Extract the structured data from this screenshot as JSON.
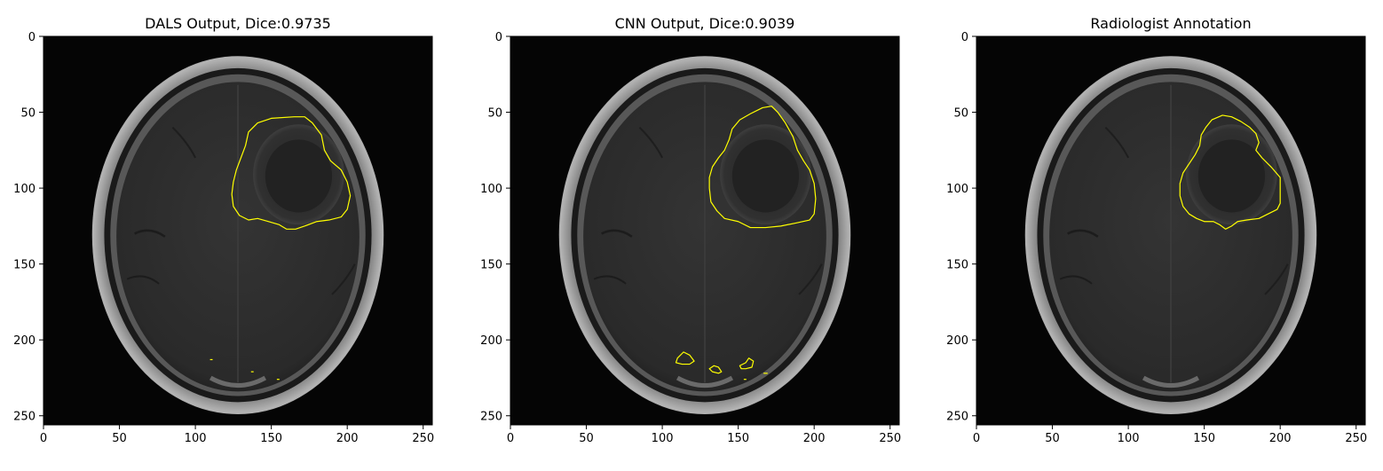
{
  "panels": [
    {
      "title": "DALS Output, Dice:0.9735",
      "contour": "dals"
    },
    {
      "title": "CNN Output, Dice:0.9039",
      "contour": "cnn"
    },
    {
      "title": "Radiologist Annotation",
      "contour": "gt"
    }
  ],
  "axes": {
    "xticks": [
      0,
      50,
      100,
      150,
      200,
      250
    ],
    "yticks": [
      0,
      50,
      100,
      150,
      200,
      250
    ],
    "xlim": [
      0,
      256
    ],
    "ylim": [
      256,
      0
    ]
  },
  "colors": {
    "contour": "#ffff00",
    "background": "#050505",
    "skull": "#9a9a9a",
    "brain": "#2b2b2b"
  }
}
